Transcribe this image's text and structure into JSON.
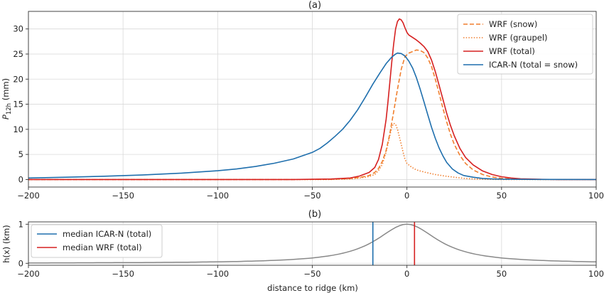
{
  "chart_data": [
    {
      "type": "line",
      "title": "(a)",
      "xlabel": "",
      "ylabel": "P_12h (mm)",
      "ylabel_main": "P",
      "ylabel_sub": "12h",
      "ylabel_unit": " (mm)",
      "xlim": [
        -200,
        100
      ],
      "ylim": [
        -1.5,
        33.5
      ],
      "xticks": [
        -200,
        -150,
        -100,
        -50,
        0,
        50,
        100
      ],
      "xtick_labels": [
        "−200",
        "−150",
        "−100",
        "−50",
        "0",
        "50",
        "100"
      ],
      "yticks": [
        0,
        5,
        10,
        15,
        20,
        25,
        30
      ],
      "ytick_labels": [
        "0",
        "5",
        "10",
        "15",
        "20",
        "25",
        "30"
      ],
      "grid": true,
      "legend_position": "top-right",
      "series": [
        {
          "name": "WRF (snow)",
          "color": "#f07f2e",
          "style": "dashed",
          "points": [
            [
              -200,
              0
            ],
            [
              -60,
              0
            ],
            [
              -40,
              0.05
            ],
            [
              -30,
              0.2
            ],
            [
              -25,
              0.4
            ],
            [
              -20,
              0.8
            ],
            [
              -17,
              1.4
            ],
            [
              -15,
              2.2
            ],
            [
              -13,
              3.6
            ],
            [
              -11,
              5.8
            ],
            [
              -9,
              9.2
            ],
            [
              -7,
              13.5
            ],
            [
              -5,
              18
            ],
            [
              -3,
              22
            ],
            [
              -1,
              24.5
            ],
            [
              1,
              25.2
            ],
            [
              3,
              25.5
            ],
            [
              5,
              25.8
            ],
            [
              7,
              25.7
            ],
            [
              9,
              25.3
            ],
            [
              11,
              24.2
            ],
            [
              13,
              22.5
            ],
            [
              15,
              20
            ],
            [
              17,
              17.2
            ],
            [
              19,
              14.2
            ],
            [
              21,
              11.5
            ],
            [
              23,
              9
            ],
            [
              25,
              7
            ],
            [
              28,
              4.8
            ],
            [
              31,
              3.2
            ],
            [
              35,
              1.9
            ],
            [
              40,
              1
            ],
            [
              45,
              0.5
            ],
            [
              50,
              0.25
            ],
            [
              55,
              0.12
            ],
            [
              60,
              0.06
            ],
            [
              70,
              0.02
            ],
            [
              100,
              0
            ]
          ]
        },
        {
          "name": "WRF (graupel)",
          "color": "#f07f2e",
          "style": "dotted",
          "points": [
            [
              -200,
              0
            ],
            [
              -40,
              0
            ],
            [
              -30,
              0.1
            ],
            [
              -25,
              0.3
            ],
            [
              -20,
              0.6
            ],
            [
              -17,
              1
            ],
            [
              -15,
              1.8
            ],
            [
              -13,
              3
            ],
            [
              -11,
              5.5
            ],
            [
              -9,
              8.8
            ],
            [
              -8,
              10.5
            ],
            [
              -7,
              11.2
            ],
            [
              -6,
              11
            ],
            [
              -5,
              10
            ],
            [
              -4,
              8.5
            ],
            [
              -3,
              7
            ],
            [
              -2,
              5.4
            ],
            [
              -1,
              4
            ],
            [
              0,
              3.2
            ],
            [
              2,
              2.6
            ],
            [
              4,
              2.1
            ],
            [
              6,
              1.8
            ],
            [
              10,
              1.4
            ],
            [
              15,
              1
            ],
            [
              20,
              0.7
            ],
            [
              25,
              0.45
            ],
            [
              30,
              0.25
            ],
            [
              35,
              0.12
            ],
            [
              40,
              0.05
            ],
            [
              50,
              0
            ],
            [
              100,
              0
            ]
          ]
        },
        {
          "name": "WRF (total)",
          "color": "#d62020",
          "style": "solid",
          "points": [
            [
              -200,
              0
            ],
            [
              -60,
              0
            ],
            [
              -40,
              0.1
            ],
            [
              -30,
              0.3
            ],
            [
              -25,
              0.7
            ],
            [
              -20,
              1.4
            ],
            [
              -17,
              2.4
            ],
            [
              -15,
              4
            ],
            [
              -13,
              7
            ],
            [
              -11,
              12
            ],
            [
              -10,
              15.5
            ],
            [
              -9,
              19.5
            ],
            [
              -8,
              23.5
            ],
            [
              -7,
              27
            ],
            [
              -6,
              30
            ],
            [
              -5,
              31.5
            ],
            [
              -4,
              32
            ],
            [
              -3,
              31.8
            ],
            [
              -2,
              31.2
            ],
            [
              -1,
              30.2
            ],
            [
              0,
              29.3
            ],
            [
              1,
              28.8
            ],
            [
              3,
              28.3
            ],
            [
              5,
              27.8
            ],
            [
              7,
              27.2
            ],
            [
              9,
              26.5
            ],
            [
              11,
              25.5
            ],
            [
              13,
              23.8
            ],
            [
              15,
              21.5
            ],
            [
              17,
              18.8
            ],
            [
              19,
              16
            ],
            [
              21,
              13.2
            ],
            [
              23,
              10.8
            ],
            [
              25,
              8.7
            ],
            [
              28,
              6.2
            ],
            [
              31,
              4.4
            ],
            [
              35,
              2.9
            ],
            [
              40,
              1.7
            ],
            [
              45,
              1
            ],
            [
              50,
              0.55
            ],
            [
              55,
              0.3
            ],
            [
              60,
              0.15
            ],
            [
              70,
              0.05
            ],
            [
              80,
              0
            ],
            [
              100,
              0
            ]
          ]
        },
        {
          "name": "ICAR-N (total = snow)",
          "color": "#1f6fad",
          "style": "solid",
          "points": [
            [
              -200,
              0.3
            ],
            [
              -180,
              0.45
            ],
            [
              -160,
              0.65
            ],
            [
              -140,
              0.9
            ],
            [
              -120,
              1.25
            ],
            [
              -100,
              1.75
            ],
            [
              -90,
              2.1
            ],
            [
              -80,
              2.6
            ],
            [
              -70,
              3.25
            ],
            [
              -60,
              4.1
            ],
            [
              -50,
              5.4
            ],
            [
              -46,
              6.2
            ],
            [
              -42,
              7.3
            ],
            [
              -38,
              8.6
            ],
            [
              -34,
              10
            ],
            [
              -30,
              11.8
            ],
            [
              -26,
              13.9
            ],
            [
              -22,
              16.4
            ],
            [
              -18,
              19
            ],
            [
              -14,
              21.4
            ],
            [
              -11,
              23.1
            ],
            [
              -8,
              24.4
            ],
            [
              -6,
              25
            ],
            [
              -5,
              25.2
            ],
            [
              -3,
              25.1
            ],
            [
              -1,
              24.6
            ],
            [
              1,
              23.6
            ],
            [
              3,
              22.2
            ],
            [
              5,
              20.3
            ],
            [
              7,
              18
            ],
            [
              9,
              15.5
            ],
            [
              11,
              12.9
            ],
            [
              13,
              10.4
            ],
            [
              15,
              8.2
            ],
            [
              17,
              6.3
            ],
            [
              19,
              4.7
            ],
            [
              21,
              3.4
            ],
            [
              24,
              2.1
            ],
            [
              27,
              1.3
            ],
            [
              30,
              0.8
            ],
            [
              35,
              0.45
            ],
            [
              40,
              0.22
            ],
            [
              45,
              0.12
            ],
            [
              50,
              0.07
            ],
            [
              60,
              0.03
            ],
            [
              70,
              0.01
            ],
            [
              100,
              0
            ]
          ]
        }
      ]
    },
    {
      "type": "line",
      "title": "(b)",
      "xlabel": "distance to ridge (km)",
      "ylabel": "h(x) (km)",
      "xlim": [
        -200,
        100
      ],
      "ylim": [
        -0.05,
        1.06
      ],
      "xticks": [
        -200,
        -150,
        -100,
        -50,
        0,
        50,
        100
      ],
      "xtick_labels": [
        "−200",
        "−150",
        "−100",
        "−50",
        "0",
        "50",
        "100"
      ],
      "yticks": [
        0,
        1
      ],
      "ytick_labels": [
        "0",
        "1"
      ],
      "grid": true,
      "legend_position": "top-left",
      "terrain": {
        "color": "#888888",
        "center": 0,
        "halfwidth": 20
      },
      "vlines": [
        {
          "name": "median ICAR-N (total)",
          "x": -18,
          "color": "#1f6fad"
        },
        {
          "name": "median WRF (total)",
          "x": 4,
          "color": "#d62020"
        }
      ]
    }
  ]
}
